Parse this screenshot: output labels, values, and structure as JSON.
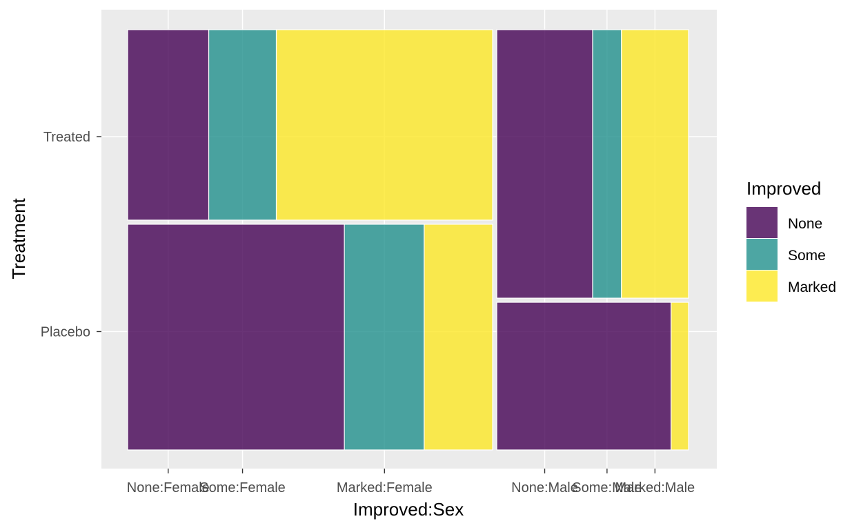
{
  "chart_data": {
    "type": "mosaic",
    "xlabel": "Improved:Sex",
    "ylabel": "Treatment",
    "x_tick_labels": [
      "None:Female",
      "Some:Female",
      "Marked:Female",
      "None:Male",
      "Some:Male",
      "Marked:Male"
    ],
    "y_tick_labels": [
      "Treated",
      "Placebo"
    ],
    "legend": {
      "title": "Improved",
      "entries": [
        {
          "label": "None",
          "color": "#440154"
        },
        {
          "label": "Some",
          "color": "#21908C"
        },
        {
          "label": "Marked",
          "color": "#FDE725"
        }
      ],
      "position": "right"
    },
    "panel_background": "#EBEBEB",
    "grid": true,
    "cells": [
      {
        "sex": "Female",
        "treatment": "Treated",
        "improved": "None",
        "count": 6
      },
      {
        "sex": "Female",
        "treatment": "Treated",
        "improved": "Some",
        "count": 5
      },
      {
        "sex": "Female",
        "treatment": "Treated",
        "improved": "Marked",
        "count": 16
      },
      {
        "sex": "Female",
        "treatment": "Placebo",
        "improved": "None",
        "count": 19
      },
      {
        "sex": "Female",
        "treatment": "Placebo",
        "improved": "Some",
        "count": 7
      },
      {
        "sex": "Female",
        "treatment": "Placebo",
        "improved": "Marked",
        "count": 6
      },
      {
        "sex": "Male",
        "treatment": "Treated",
        "improved": "None",
        "count": 10
      },
      {
        "sex": "Male",
        "treatment": "Treated",
        "improved": "Some",
        "count": 3
      },
      {
        "sex": "Male",
        "treatment": "Treated",
        "improved": "Marked",
        "count": 7
      },
      {
        "sex": "Male",
        "treatment": "Placebo",
        "improved": "None",
        "count": 10
      },
      {
        "sex": "Male",
        "treatment": "Placebo",
        "improved": "Some",
        "count": 0
      },
      {
        "sex": "Male",
        "treatment": "Placebo",
        "improved": "Marked",
        "count": 1
      }
    ]
  }
}
